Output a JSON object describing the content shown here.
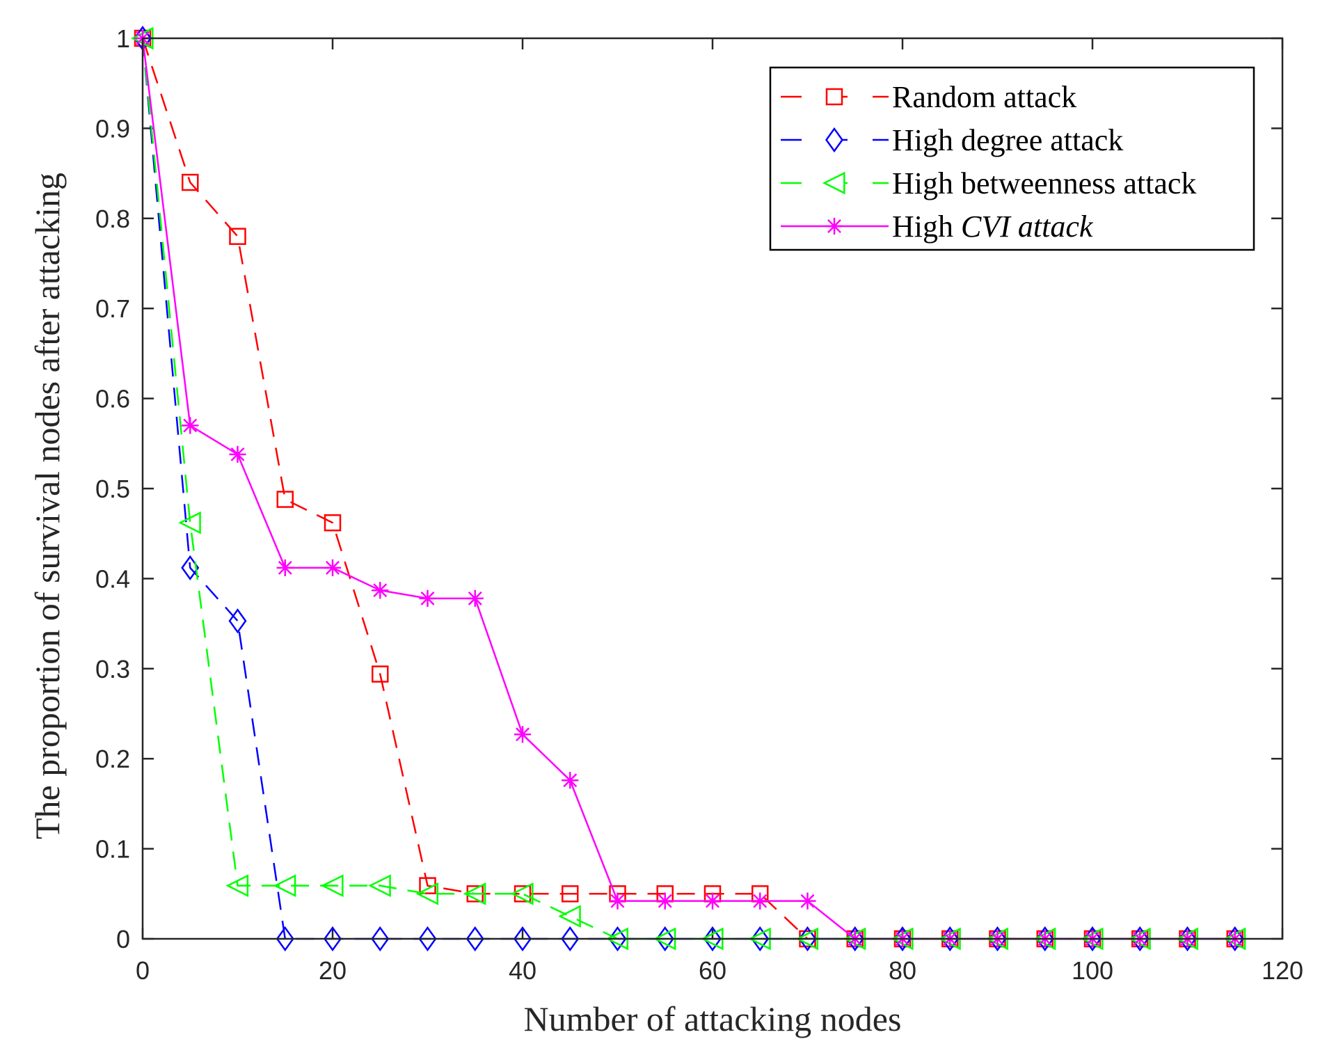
{
  "chart_data": {
    "type": "line",
    "title": "",
    "xlabel": "Number of attacking nodes",
    "ylabel": "The proportion of survival nodes after attacking",
    "xlim": [
      0,
      120
    ],
    "ylim": [
      0,
      1
    ],
    "xticks": [
      0,
      20,
      40,
      60,
      80,
      100,
      120
    ],
    "yticks": [
      0,
      0.1,
      0.2,
      0.3,
      0.4,
      0.5,
      0.6,
      0.7,
      0.8,
      0.9,
      1
    ],
    "grid": false,
    "legend_position": "top-right",
    "x": [
      0,
      5,
      10,
      15,
      20,
      25,
      30,
      35,
      40,
      45,
      50,
      55,
      60,
      65,
      70,
      75,
      80,
      85,
      90,
      95,
      100,
      105,
      110,
      115
    ],
    "series": [
      {
        "name": "Random attack",
        "color": "#ff0000",
        "line_style": "dashed",
        "marker": "square",
        "values": [
          1,
          0.84,
          0.78,
          0.488,
          0.462,
          0.294,
          0.059,
          0.05,
          0.05,
          0.05,
          0.05,
          0.05,
          0.05,
          0.05,
          0,
          0,
          0,
          0,
          0,
          0,
          0,
          0,
          0,
          0
        ]
      },
      {
        "name": "High degree attack",
        "color": "#0000ff",
        "line_style": "dashed",
        "marker": "diamond",
        "values": [
          1,
          0.412,
          0.353,
          0,
          0,
          0,
          0,
          0,
          0,
          0,
          0,
          0,
          0,
          0,
          0,
          0,
          0,
          0,
          0,
          0,
          0,
          0,
          0,
          0
        ]
      },
      {
        "name": "High betweenness attack",
        "color": "#00ff00",
        "line_style": "dashed",
        "marker": "triangle-left",
        "values": [
          1,
          0.462,
          0.059,
          0.059,
          0.059,
          0.059,
          0.05,
          0.05,
          0.05,
          0.025,
          0,
          0,
          0,
          0,
          0,
          0,
          0,
          0,
          0,
          0,
          0,
          0,
          0,
          0
        ]
      },
      {
        "name": "High CVI attack",
        "name_plain": "High ",
        "name_italic": "CVI attack",
        "color": "#ff00ff",
        "line_style": "solid",
        "marker": "asterisk",
        "values": [
          1,
          0.57,
          0.538,
          0.412,
          0.412,
          0.387,
          0.378,
          0.378,
          0.227,
          0.176,
          0.042,
          0.042,
          0.042,
          0.042,
          0.042,
          0,
          0,
          0,
          0,
          0,
          0,
          0,
          0,
          0
        ]
      }
    ]
  }
}
